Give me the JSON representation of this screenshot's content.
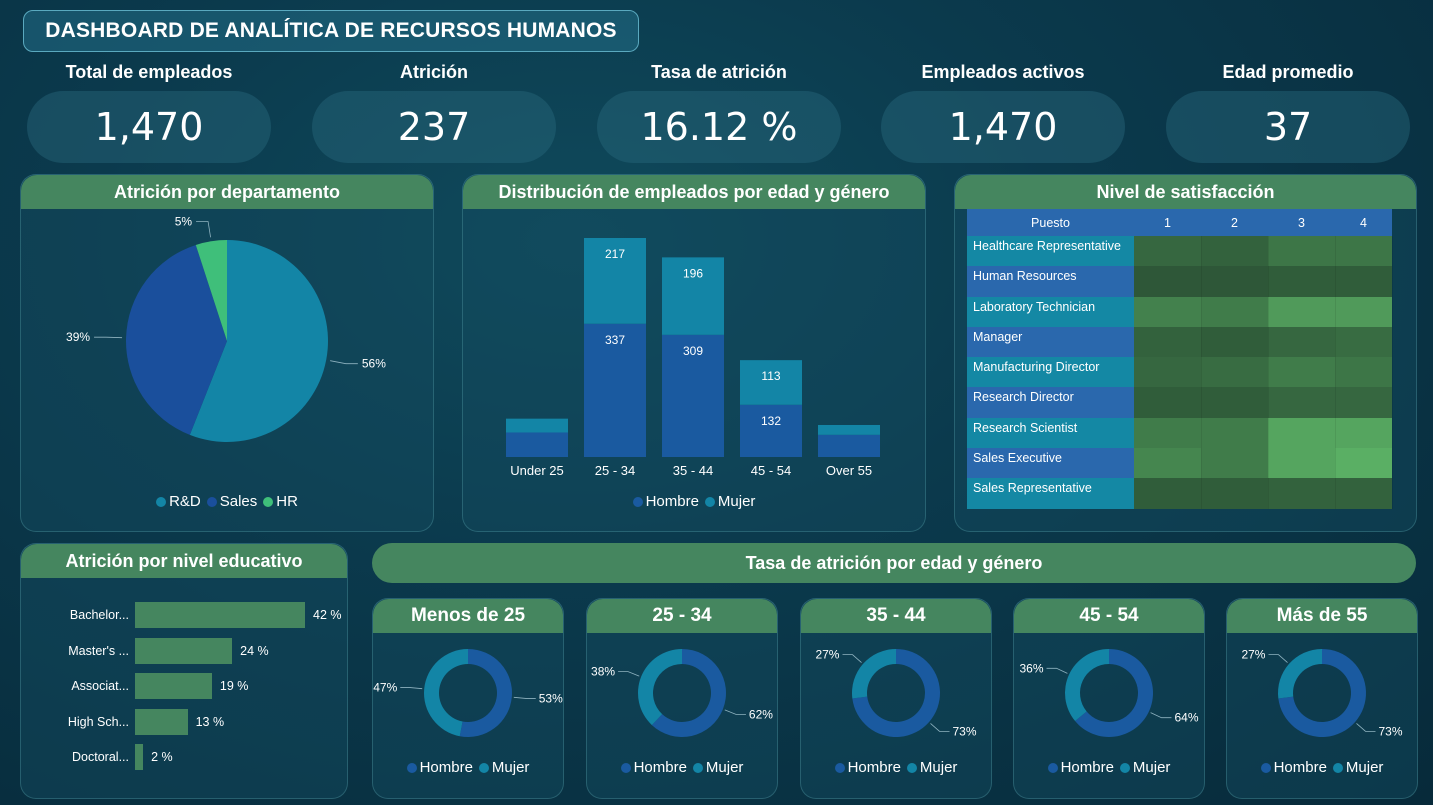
{
  "title": "DASHBOARD DE ANALÍTICA DE RECURSOS HUMANOS",
  "kpis": [
    {
      "label": "Total de empleados",
      "value": "1,470"
    },
    {
      "label": "Atrición",
      "value": "237"
    },
    {
      "label": "Tasa de atrición",
      "value": "16.12 %"
    },
    {
      "label": "Empleados activos",
      "value": "1,470"
    },
    {
      "label": "Edad promedio",
      "value": "37"
    }
  ],
  "colors": {
    "rd": "#1385a6",
    "sales": "#1a4f9c",
    "hr": "#3fbf7a",
    "hombre": "#1a5aa0",
    "mujer": "#1385a6",
    "header_green": "#45865f"
  },
  "dept": {
    "title": "Atrición por departamento",
    "legend": [
      "R&D",
      "Sales",
      "HR"
    ]
  },
  "age_gender": {
    "title": "Distribución de empleados por edad y género",
    "legend": [
      "Hombre",
      "Mujer"
    ]
  },
  "satisfaction": {
    "title": "Nivel de satisfacción",
    "header": [
      "Puesto",
      "1",
      "2",
      "3",
      "4"
    ],
    "rows": [
      {
        "name": "Healthcare Representative",
        "levels": [
          0.3,
          0.25,
          0.45,
          0.45
        ]
      },
      {
        "name": "Human Resources",
        "levels": [
          0.15,
          0.15,
          0.2,
          0.2
        ]
      },
      {
        "name": "Laboratory Technician",
        "levels": [
          0.55,
          0.5,
          0.8,
          0.8
        ]
      },
      {
        "name": "Manager",
        "levels": [
          0.25,
          0.2,
          0.3,
          0.35
        ]
      },
      {
        "name": "Manufacturing Director",
        "levels": [
          0.3,
          0.35,
          0.5,
          0.45
        ]
      },
      {
        "name": "Research Director",
        "levels": [
          0.2,
          0.2,
          0.3,
          0.3
        ]
      },
      {
        "name": "Research Scientist",
        "levels": [
          0.5,
          0.5,
          0.9,
          0.9
        ]
      },
      {
        "name": "Sales Executive",
        "levels": [
          0.6,
          0.5,
          0.9,
          1.0
        ]
      },
      {
        "name": "Sales Representative",
        "levels": [
          0.2,
          0.2,
          0.25,
          0.25
        ]
      }
    ]
  },
  "education": {
    "title": "Atrición por nivel educativo",
    "rows": [
      {
        "label": "Bachelor...",
        "pct": "42 %",
        "value": 42
      },
      {
        "label": "Master's ...",
        "pct": "24 %",
        "value": 24
      },
      {
        "label": "Associat...",
        "pct": "19 %",
        "value": 19
      },
      {
        "label": "High Sch...",
        "pct": "13 %",
        "value": 13
      },
      {
        "label": "Doctoral...",
        "pct": "2 %",
        "value": 2
      }
    ]
  },
  "rate_section": {
    "title": "Tasa de atrición por edad y género",
    "legend": [
      "Hombre",
      "Mujer"
    ],
    "groups": [
      {
        "title": "Menos de 25",
        "mujer_label": "47%",
        "hombre_label": "53%"
      },
      {
        "title": "25 - 34",
        "mujer_label": "38%",
        "hombre_label": "62%"
      },
      {
        "title": "35 - 44",
        "mujer_label": "27%",
        "hombre_label": "73%"
      },
      {
        "title": "45 - 54",
        "mujer_label": "36%",
        "hombre_label": "64%"
      },
      {
        "title": "Más de 55",
        "mujer_label": "27%",
        "hombre_label": "73%"
      }
    ]
  },
  "chart_data": [
    {
      "type": "pie",
      "title": "Atrición por departamento",
      "categories": [
        "R&D",
        "Sales",
        "HR"
      ],
      "values": [
        56,
        39,
        5
      ],
      "labels": [
        "56%",
        "39%",
        "5%"
      ],
      "legend": "bottom"
    },
    {
      "type": "bar",
      "stacked": true,
      "title": "Distribución de empleados por edad y género",
      "categories": [
        "Under 25",
        "25 - 34",
        "35 - 44",
        "45 - 54",
        "Over 55"
      ],
      "series": [
        {
          "name": "Hombre",
          "values": [
            62,
            337,
            309,
            132,
            56
          ],
          "labels": [
            "",
            "337",
            "309",
            "132",
            ""
          ]
        },
        {
          "name": "Mujer",
          "values": [
            35,
            217,
            196,
            113,
            25
          ],
          "labels": [
            "",
            "217",
            "196",
            "113",
            ""
          ]
        }
      ],
      "legend": "bottom"
    },
    {
      "type": "bar",
      "orientation": "horizontal",
      "title": "Atrición por nivel educativo",
      "categories": [
        "Bachelor...",
        "Master's ...",
        "Associat...",
        "High Sch...",
        "Doctoral..."
      ],
      "values": [
        42,
        24,
        19,
        13,
        2
      ]
    },
    {
      "type": "pie",
      "donut": true,
      "title": "Tasa de atrición por edad y género",
      "categories": [
        "Menos de 25",
        "25 - 34",
        "35 - 44",
        "45 - 54",
        "Más de 55"
      ],
      "series": [
        {
          "name": "Hombre",
          "values": [
            53,
            62,
            73,
            64,
            73
          ]
        },
        {
          "name": "Mujer",
          "values": [
            47,
            38,
            27,
            36,
            27
          ]
        }
      ]
    }
  ]
}
